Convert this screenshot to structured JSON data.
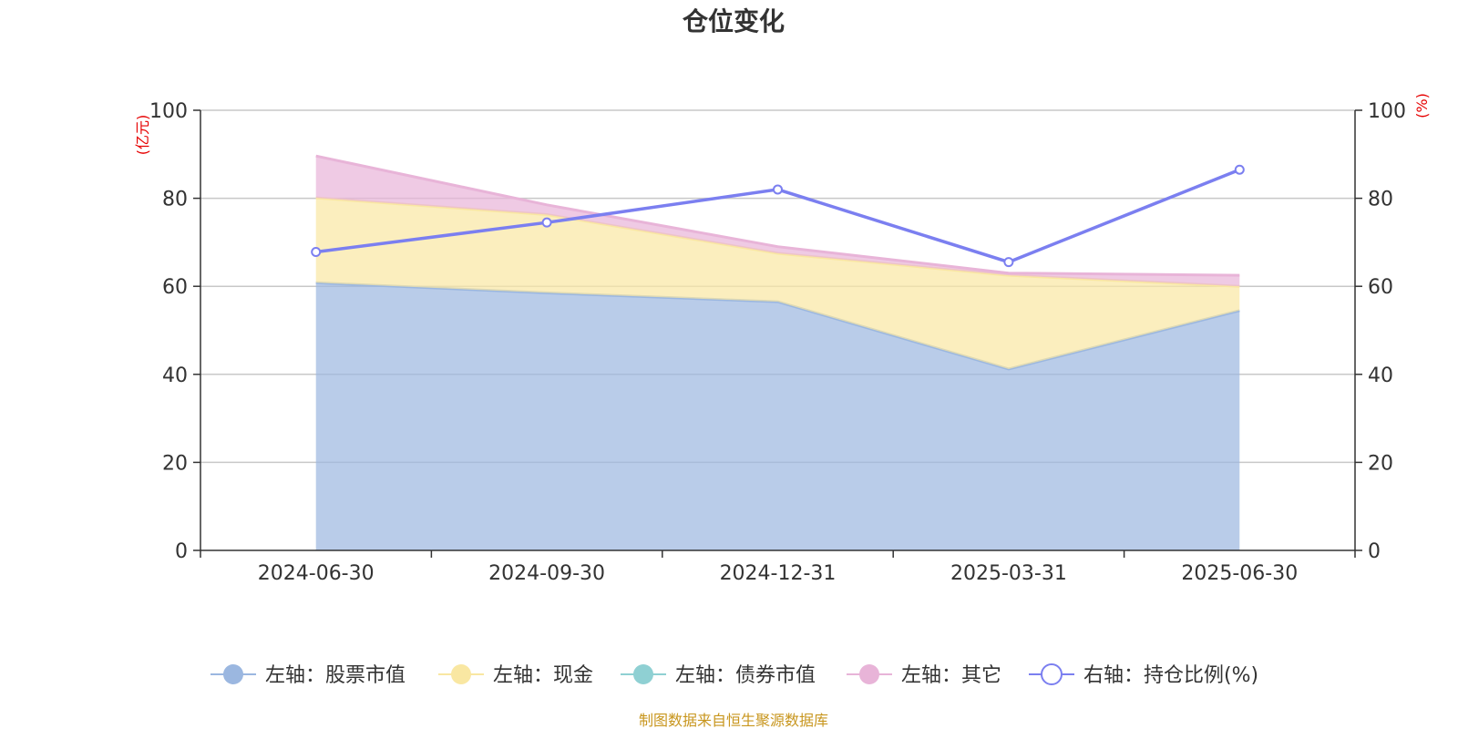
{
  "chart_data": {
    "type": "area",
    "title": "仓位变化",
    "x": [
      "2024-06-30",
      "2024-09-30",
      "2024-12-31",
      "2025-03-31",
      "2025-06-30"
    ],
    "left_axis": {
      "unit": "(亿元)",
      "ylim": [
        0,
        100
      ],
      "ticks": [
        0,
        20,
        40,
        60,
        80,
        100
      ]
    },
    "right_axis": {
      "unit": "(%)",
      "ylim": [
        0,
        100
      ],
      "ticks": [
        0,
        20,
        40,
        60,
        80,
        100
      ]
    },
    "stacked": true,
    "grid": true,
    "legend_position": "bottom",
    "series": [
      {
        "name": "左轴：股票市值",
        "axis": "left",
        "type": "area",
        "color": "#9bb7e0",
        "values": [
          60.8,
          58.5,
          56.5,
          41.2,
          54.5
        ]
      },
      {
        "name": "左轴：现金",
        "axis": "left",
        "type": "area",
        "color": "#f9e7a2",
        "values": [
          19.3,
          17.8,
          11.0,
          21.3,
          5.5
        ]
      },
      {
        "name": "左轴：债券市值",
        "axis": "left",
        "type": "area",
        "color": "#8fd0d3",
        "values": [
          0,
          0,
          0,
          0,
          0
        ]
      },
      {
        "name": "左轴：其它",
        "axis": "left",
        "type": "area",
        "color": "#e8b4d8",
        "values": [
          9.5,
          2.2,
          1.5,
          0.5,
          2.5
        ]
      },
      {
        "name": "右轴：持仓比例(%)",
        "axis": "right",
        "type": "line",
        "color": "#7b7ff0",
        "values": [
          67.8,
          74.5,
          82.0,
          65.5,
          86.5
        ]
      }
    ]
  },
  "footer": {
    "source": "制图数据来自恒生聚源数据库"
  }
}
